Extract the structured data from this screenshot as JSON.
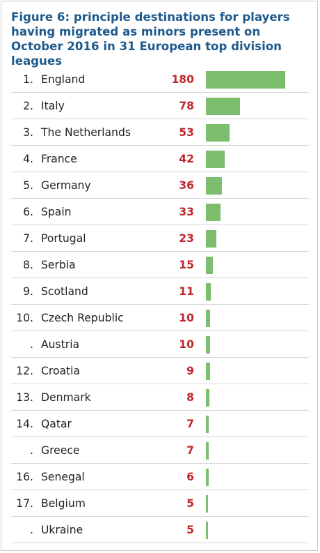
{
  "colors": {
    "title": "#1f5a8c",
    "value": "#c0252b",
    "bar": "#7cbd6e",
    "text": "#222222",
    "divider": "#d6d6d6"
  },
  "chart_data": {
    "type": "bar",
    "orientation": "horizontal",
    "title": "Figure 6: principle destinations for players having migrated as minors present on October 2016 in 31 European top division leagues",
    "xlabel": "",
    "ylabel": "",
    "xlim": [
      0,
      180
    ],
    "grid": false,
    "legend": "none",
    "rows": [
      {
        "rank": "1.",
        "country": "England",
        "value": 180
      },
      {
        "rank": "2.",
        "country": "Italy",
        "value": 78
      },
      {
        "rank": "3.",
        "country": "The Netherlands",
        "value": 53
      },
      {
        "rank": "4.",
        "country": "France",
        "value": 42
      },
      {
        "rank": "5.",
        "country": "Germany",
        "value": 36
      },
      {
        "rank": "6.",
        "country": "Spain",
        "value": 33
      },
      {
        "rank": "7.",
        "country": "Portugal",
        "value": 23
      },
      {
        "rank": "8.",
        "country": "Serbia",
        "value": 15
      },
      {
        "rank": "9.",
        "country": "Scotland",
        "value": 11
      },
      {
        "rank": "10.",
        "country": "Czech Republic",
        "value": 10
      },
      {
        "rank": ".",
        "country": "Austria",
        "value": 10
      },
      {
        "rank": "12.",
        "country": "Croatia",
        "value": 9
      },
      {
        "rank": "13.",
        "country": "Denmark",
        "value": 8
      },
      {
        "rank": "14.",
        "country": "Qatar",
        "value": 7
      },
      {
        "rank": ".",
        "country": "Greece",
        "value": 7
      },
      {
        "rank": "16.",
        "country": "Senegal",
        "value": 6
      },
      {
        "rank": "17.",
        "country": "Belgium",
        "value": 5
      },
      {
        "rank": ".",
        "country": "Ukraine",
        "value": 5
      }
    ]
  }
}
